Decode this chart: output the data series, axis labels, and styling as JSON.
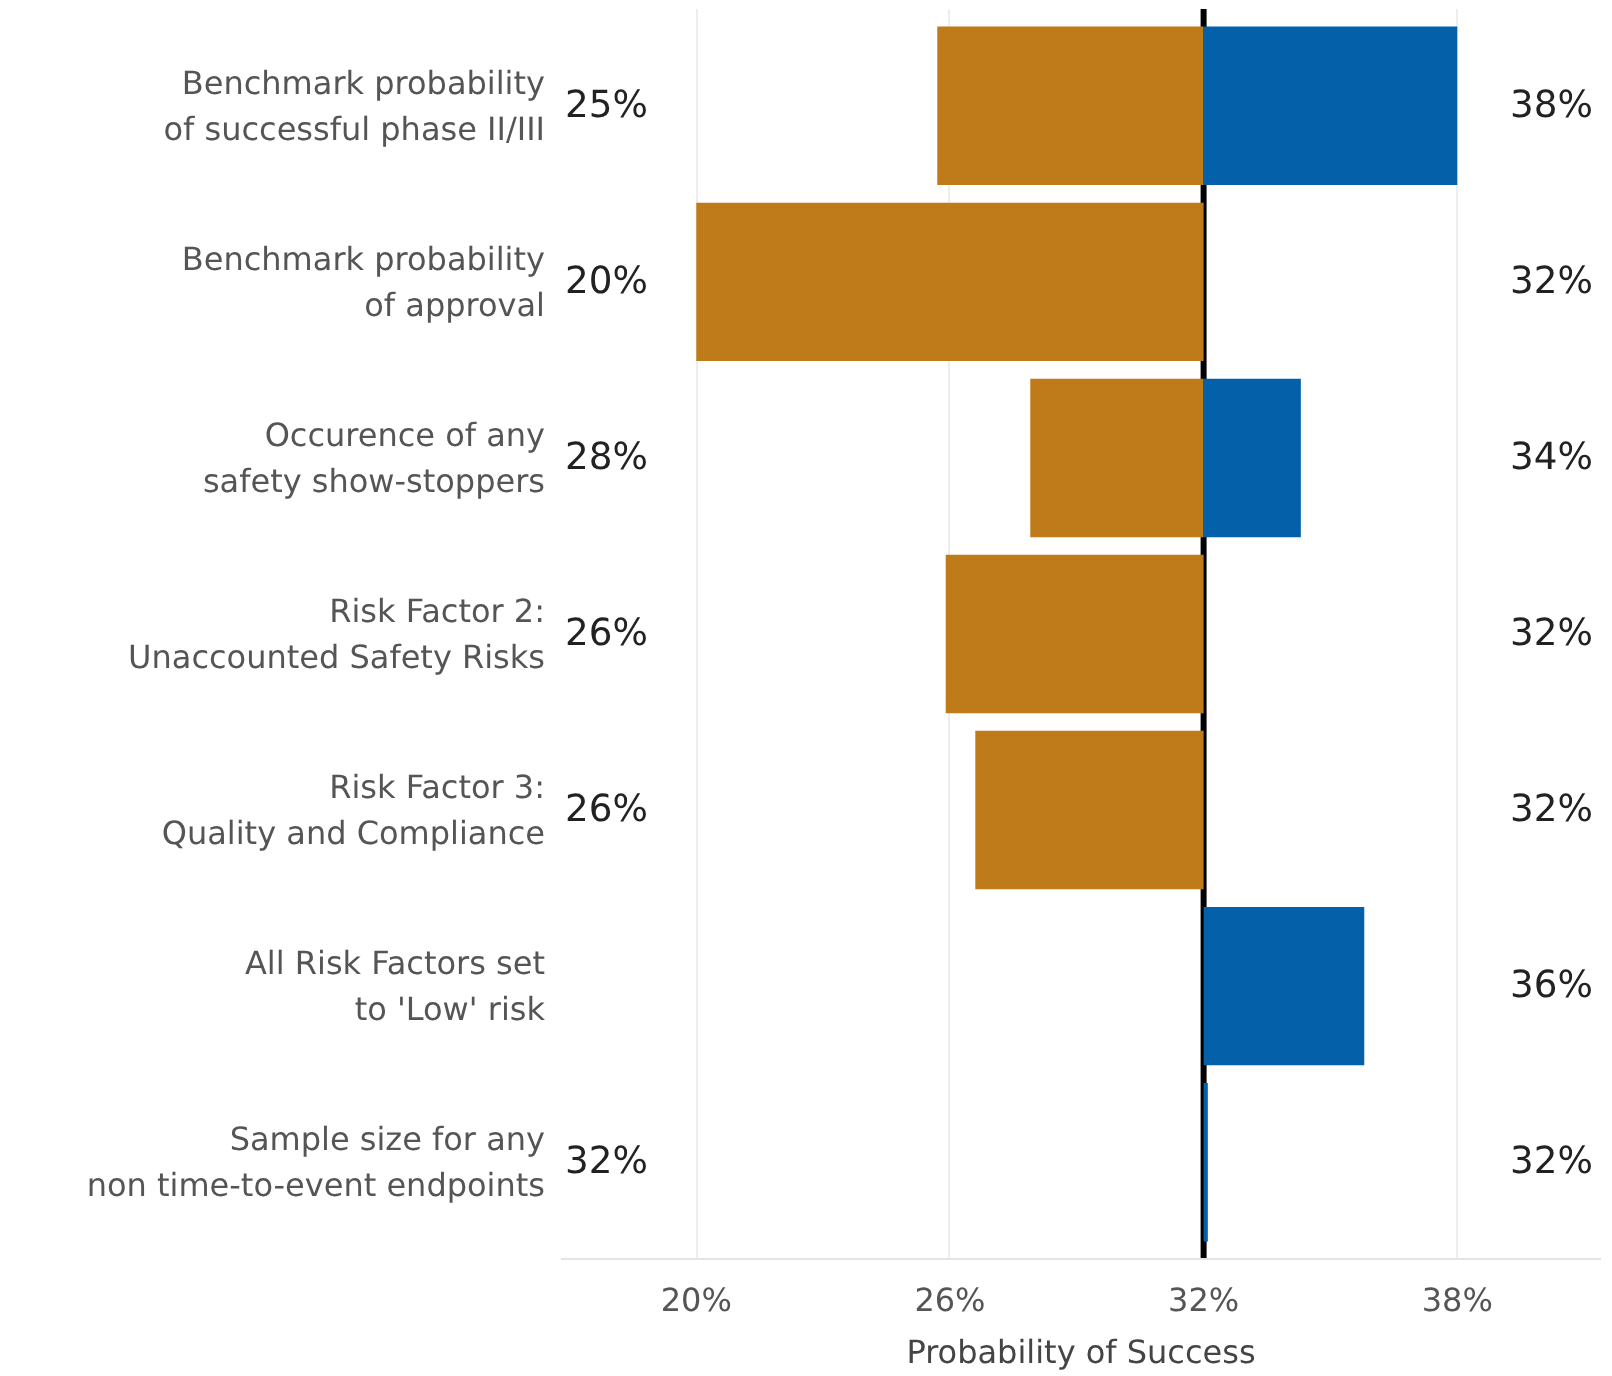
{
  "chart_data": {
    "type": "bar",
    "orientation": "horizontal",
    "xlabel": "Probability of Success",
    "categories": [
      "Benchmark probability\nof successful phase II/III",
      "Benchmark probability\nof approval",
      "Occurence of any\nsafety show-stoppers",
      "Risk Factor 2:\nUnaccounted Safety Risks",
      "Risk Factor 3:\nQuality and Compliance",
      "All Risk Factors set\nto 'Low' risk",
      "Sample size for any\nnon time-to-event endpoints"
    ],
    "series": [
      {
        "color": "#bf7b19",
        "base": [
          25.7,
          20.0,
          27.9,
          25.9,
          26.6,
          null,
          null
        ],
        "values": [
          6.3,
          12.0,
          4.1,
          6.1,
          5.4,
          null,
          0
        ]
      },
      {
        "color": "#0460a9",
        "base": [
          32,
          null,
          32,
          null,
          null,
          32,
          32
        ],
        "values": [
          6.0,
          0,
          2.3,
          0,
          0,
          3.8,
          0.1
        ]
      }
    ],
    "annotations": [
      "25%",
      "38%",
      "20%",
      "32%",
      "28%",
      "34%",
      "26%",
      "32%",
      "26%",
      "32%",
      "36%",
      "32%",
      "32%"
    ],
    "xlim": [
      16.8,
      41.4
    ],
    "xticks": [
      {
        "value": 20,
        "label": "20%"
      },
      {
        "value": 26,
        "label": "26%"
      },
      {
        "value": 32,
        "label": "32%"
      },
      {
        "value": 38,
        "label": "38%"
      }
    ],
    "ref_lines": [
      {
        "axis": "x",
        "value": 32,
        "color": "#000000"
      }
    ],
    "grid": "x"
  }
}
